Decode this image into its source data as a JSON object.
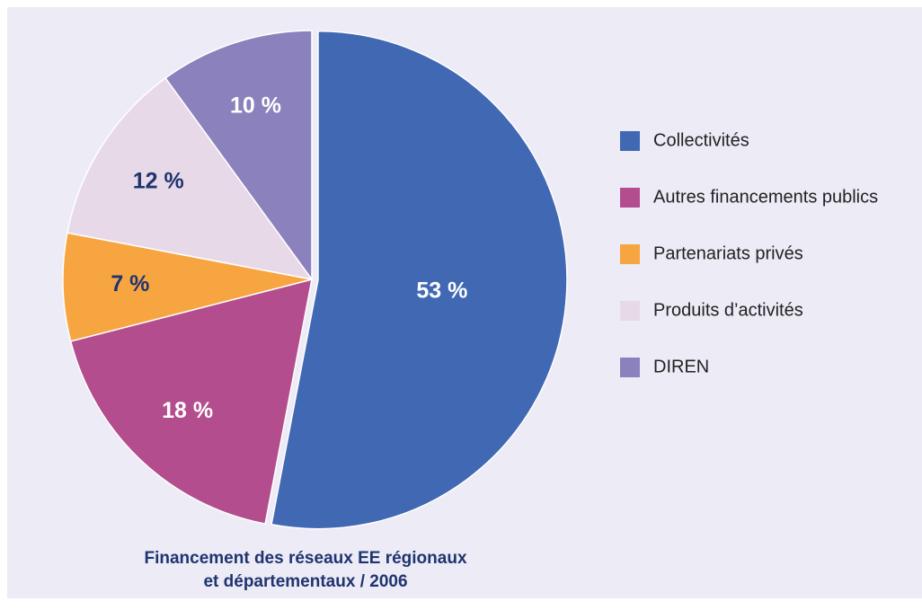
{
  "chart_data": {
    "type": "pie",
    "title": [
      "Financement des réseaux EE régionaux",
      "et départementaux / 2006"
    ],
    "categories": [
      "Collectivités",
      "Autres financements publics",
      "Partenariats privés",
      "Produits d’activités",
      "DIREN"
    ],
    "values": [
      53,
      18,
      7,
      12,
      10
    ],
    "value_labels": [
      "53 %",
      "18 %",
      "7 %",
      "12 %",
      "10 %"
    ],
    "colors": [
      "#4169b3",
      "#b44d8d",
      "#f7a541",
      "#e8d9e9",
      "#8b82bd"
    ],
    "label_colors": [
      "#ffffff",
      "#ffffff",
      "#1f3470",
      "#1f3470",
      "#ffffff"
    ],
    "legend": "right"
  }
}
